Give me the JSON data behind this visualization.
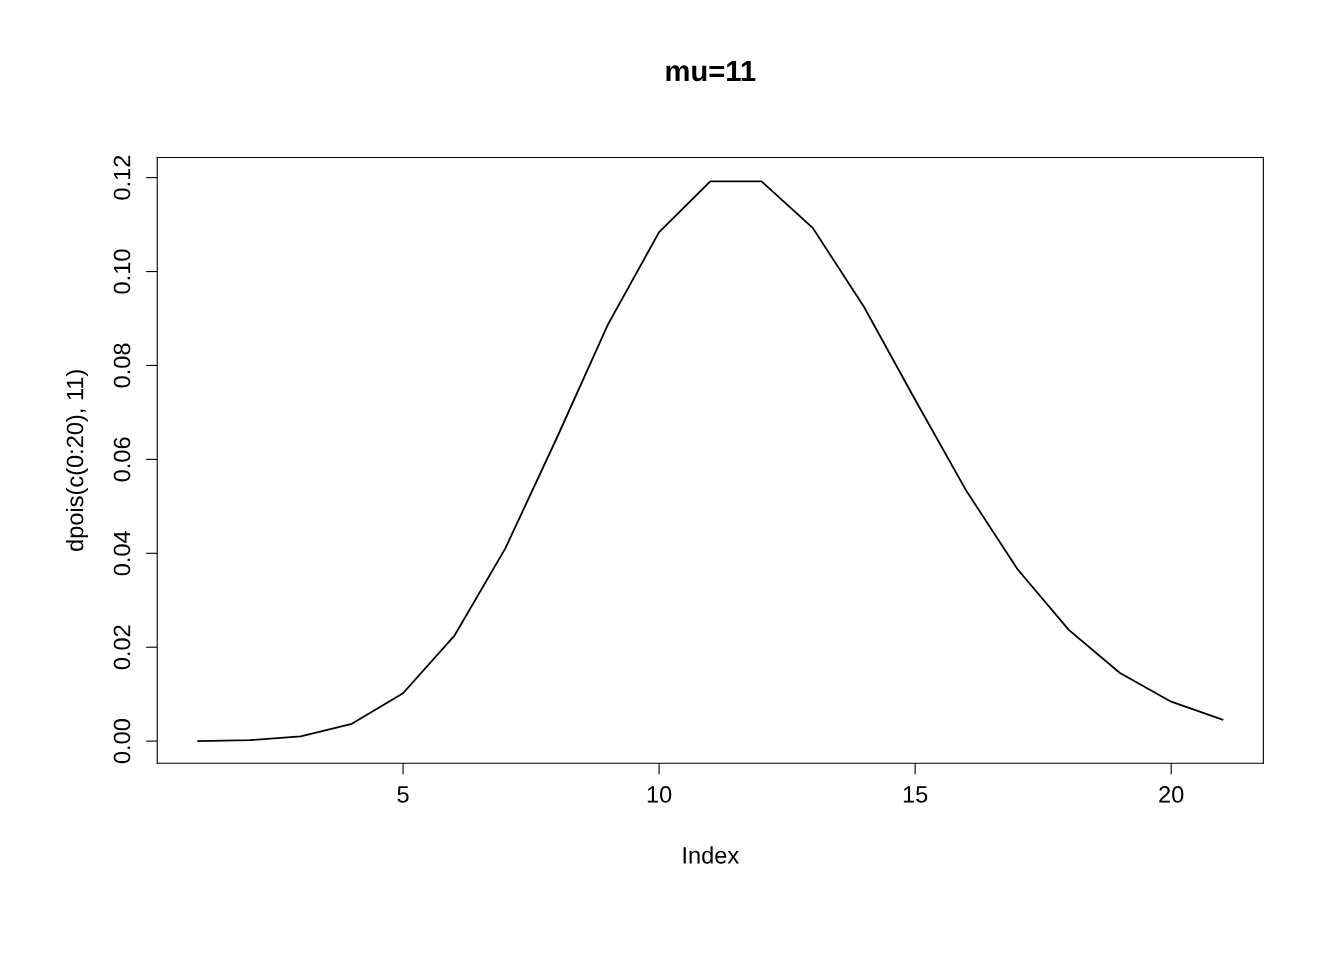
{
  "chart_data": {
    "type": "line",
    "title": "mu=11",
    "xlabel": "Index",
    "ylabel": "dpois(c(0:20), 11)",
    "x": [
      1,
      2,
      3,
      4,
      5,
      6,
      7,
      8,
      9,
      10,
      11,
      12,
      13,
      14,
      15,
      16,
      17,
      18,
      19,
      20,
      21
    ],
    "series": [
      {
        "color": "#000000",
        "values": [
          0.0,
          0.0002,
          0.001,
          0.0037,
          0.0102,
          0.0224,
          0.0411,
          0.0645,
          0.0887,
          0.1084,
          0.1192,
          0.1192,
          0.1093,
          0.0925,
          0.0727,
          0.0533,
          0.0366,
          0.0237,
          0.0145,
          0.0084,
          0.0046
        ]
      }
    ],
    "xlim": [
      0.2,
      21.8
    ],
    "ylim": [
      -0.0047,
      0.1243
    ],
    "xticks": [
      5,
      10,
      15,
      20
    ],
    "yticks": [
      {
        "value": 0,
        "label": "0.00"
      },
      {
        "value": 0.02,
        "label": "0.02"
      },
      {
        "value": 0.04,
        "label": "0.04"
      },
      {
        "value": 0.06,
        "label": "0.06"
      },
      {
        "value": 0.08,
        "label": "0.08"
      },
      {
        "value": 0.1,
        "label": "0.10"
      },
      {
        "value": 0.12,
        "label": "0.12"
      }
    ],
    "grid": false,
    "legend": false,
    "marker": "none",
    "line_style": "solid"
  }
}
